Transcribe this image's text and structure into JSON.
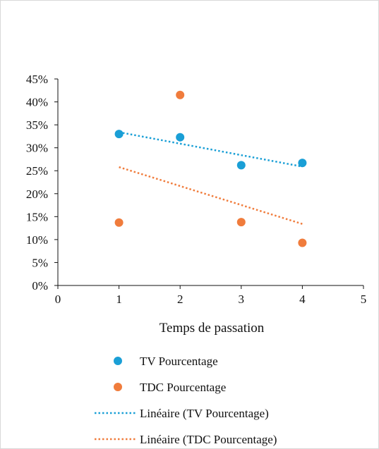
{
  "chart_data": {
    "type": "scatter",
    "title": "",
    "xlabel": "Temps de passation",
    "ylabel": "",
    "xlim": [
      0,
      5
    ],
    "ylim": [
      0,
      0.45
    ],
    "x_ticks": [
      "0",
      "1",
      "2",
      "3",
      "4",
      "5"
    ],
    "y_ticks": [
      "0%",
      "5%",
      "10%",
      "15%",
      "20%",
      "25%",
      "30%",
      "35%",
      "40%",
      "45%"
    ],
    "grid": false,
    "legend_position": "bottom",
    "series": [
      {
        "name": "TV Pourcentage",
        "color": "#1a9fd6",
        "x": [
          1,
          2,
          3,
          4
        ],
        "y": [
          0.33,
          0.323,
          0.262,
          0.267
        ]
      },
      {
        "name": "TDC Pourcentage",
        "color": "#f07c3c",
        "x": [
          1,
          2,
          3,
          4
        ],
        "y": [
          0.137,
          0.415,
          0.138,
          0.093
        ]
      }
    ],
    "trendlines": [
      {
        "name": "Linéaire (TV Pourcentage)",
        "color": "#1a9fd6",
        "x": [
          1,
          4
        ],
        "y": [
          0.334,
          0.259
        ]
      },
      {
        "name": "Linéaire (TDC Pourcentage)",
        "color": "#f07c3c",
        "x": [
          1,
          4
        ],
        "y": [
          0.258,
          0.134
        ]
      }
    ]
  }
}
